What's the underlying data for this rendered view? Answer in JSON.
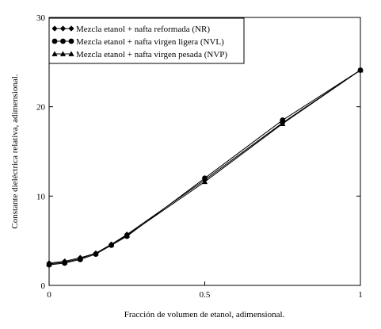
{
  "chart_data": {
    "type": "line",
    "title": "",
    "xlabel": "Fracción de volumen de etanol, adimensional.",
    "ylabel": "Constante dieléctrica relativa, adimensional.",
    "xlim": [
      0,
      1
    ],
    "ylim": [
      0,
      30
    ],
    "xticks": [
      0,
      0.5,
      1
    ],
    "xtick_labels": [
      "0",
      "0.5",
      "1"
    ],
    "yticks": [
      0,
      10,
      20,
      30
    ],
    "ytick_labels": [
      "0",
      "10",
      "20",
      "30"
    ],
    "grid": false,
    "legend_position": "top-left",
    "series": [
      {
        "name": "Mezcla etanol + nafta reformada (NR)",
        "marker": "diamond",
        "color": "#000000",
        "x": [
          0,
          0.05,
          0.1,
          0.15,
          0.2,
          0.25,
          0.5,
          0.75,
          1
        ],
        "y": [
          2.5,
          2.7,
          3.1,
          3.6,
          4.6,
          5.7,
          11.8,
          18.2,
          24.1
        ]
      },
      {
        "name": "Mezcla etanol + nafta virgen ligera (NVL)",
        "marker": "circle",
        "color": "#000000",
        "x": [
          0,
          0.05,
          0.1,
          0.15,
          0.2,
          0.25,
          0.5,
          0.75,
          1
        ],
        "y": [
          2.3,
          2.5,
          2.9,
          3.5,
          4.5,
          5.5,
          12.0,
          18.5,
          24.1
        ]
      },
      {
        "name": "Mezcla etanol + nafta virgen pesada (NVP)",
        "marker": "triangle",
        "color": "#000000",
        "x": [
          0,
          0.05,
          0.1,
          0.15,
          0.2,
          0.25,
          0.5,
          0.75,
          1
        ],
        "y": [
          2.4,
          2.6,
          3.0,
          3.6,
          4.6,
          5.6,
          11.6,
          18.1,
          24.1
        ]
      }
    ]
  }
}
